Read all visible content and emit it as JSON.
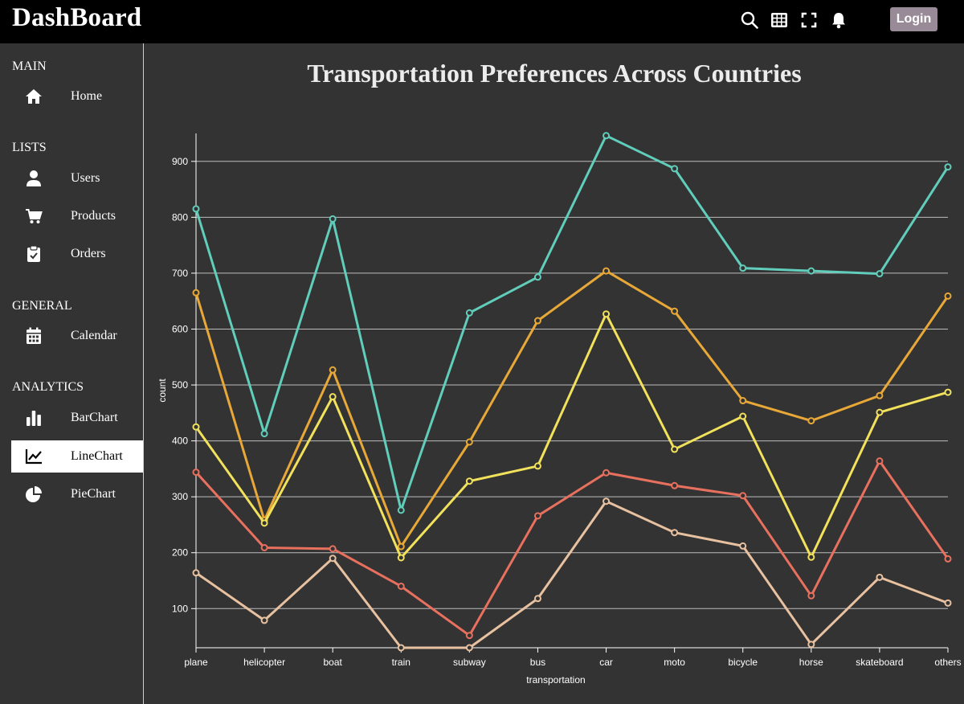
{
  "app": {
    "brand": "DashBoard",
    "login_label": "Login"
  },
  "topbar": {
    "icons": [
      "search-icon",
      "grid-icon",
      "fullscreen-icon",
      "bell-icon"
    ]
  },
  "sidebar": {
    "sections": [
      {
        "title": "MAIN",
        "items": [
          {
            "label": "Home",
            "icon": "home-icon"
          }
        ]
      },
      {
        "title": "LISTS",
        "items": [
          {
            "label": "Users",
            "icon": "user-icon"
          },
          {
            "label": "Products",
            "icon": "cart-icon"
          },
          {
            "label": "Orders",
            "icon": "clipboard-icon"
          }
        ]
      },
      {
        "title": "GENERAL",
        "items": [
          {
            "label": "Calendar",
            "icon": "calendar-icon"
          }
        ]
      },
      {
        "title": "ANALYTICS",
        "items": [
          {
            "label": "BarChart",
            "icon": "bar-chart-icon"
          },
          {
            "label": "LineChart",
            "icon": "line-chart-icon",
            "active": true
          },
          {
            "label": "PieChart",
            "icon": "pie-chart-icon"
          }
        ]
      }
    ]
  },
  "chart_data": {
    "type": "line",
    "title": "Transportation Preferences Across Countries",
    "xlabel": "transportation",
    "ylabel": "count",
    "categories": [
      "plane",
      "helicopter",
      "boat",
      "train",
      "subway",
      "bus",
      "car",
      "moto",
      "bicycle",
      "horse",
      "skateboard",
      "others"
    ],
    "ylim": [
      30,
      950
    ],
    "yticks": [
      100,
      200,
      300,
      400,
      500,
      600,
      700,
      800,
      900
    ],
    "grid": true,
    "legend": "none",
    "series": [
      {
        "color": "#61cdbb",
        "values": [
          815,
          413,
          797,
          276,
          629,
          693,
          946,
          887,
          709,
          704,
          699,
          890
        ]
      },
      {
        "color": "#e8a838",
        "values": [
          665,
          258,
          527,
          211,
          398,
          615,
          704,
          632,
          472,
          436,
          481,
          659
        ]
      },
      {
        "color": "#f1e15b",
        "values": [
          425,
          253,
          479,
          191,
          328,
          355,
          627,
          385,
          444,
          192,
          451,
          487
        ]
      },
      {
        "color": "#e8705e",
        "values": [
          344,
          209,
          207,
          140,
          52,
          266,
          343,
          320,
          302,
          123,
          364,
          189
        ]
      },
      {
        "color": "#e8c1a0",
        "values": [
          164,
          79,
          190,
          30,
          30,
          118,
          292,
          236,
          212,
          36,
          156,
          110
        ]
      }
    ]
  }
}
